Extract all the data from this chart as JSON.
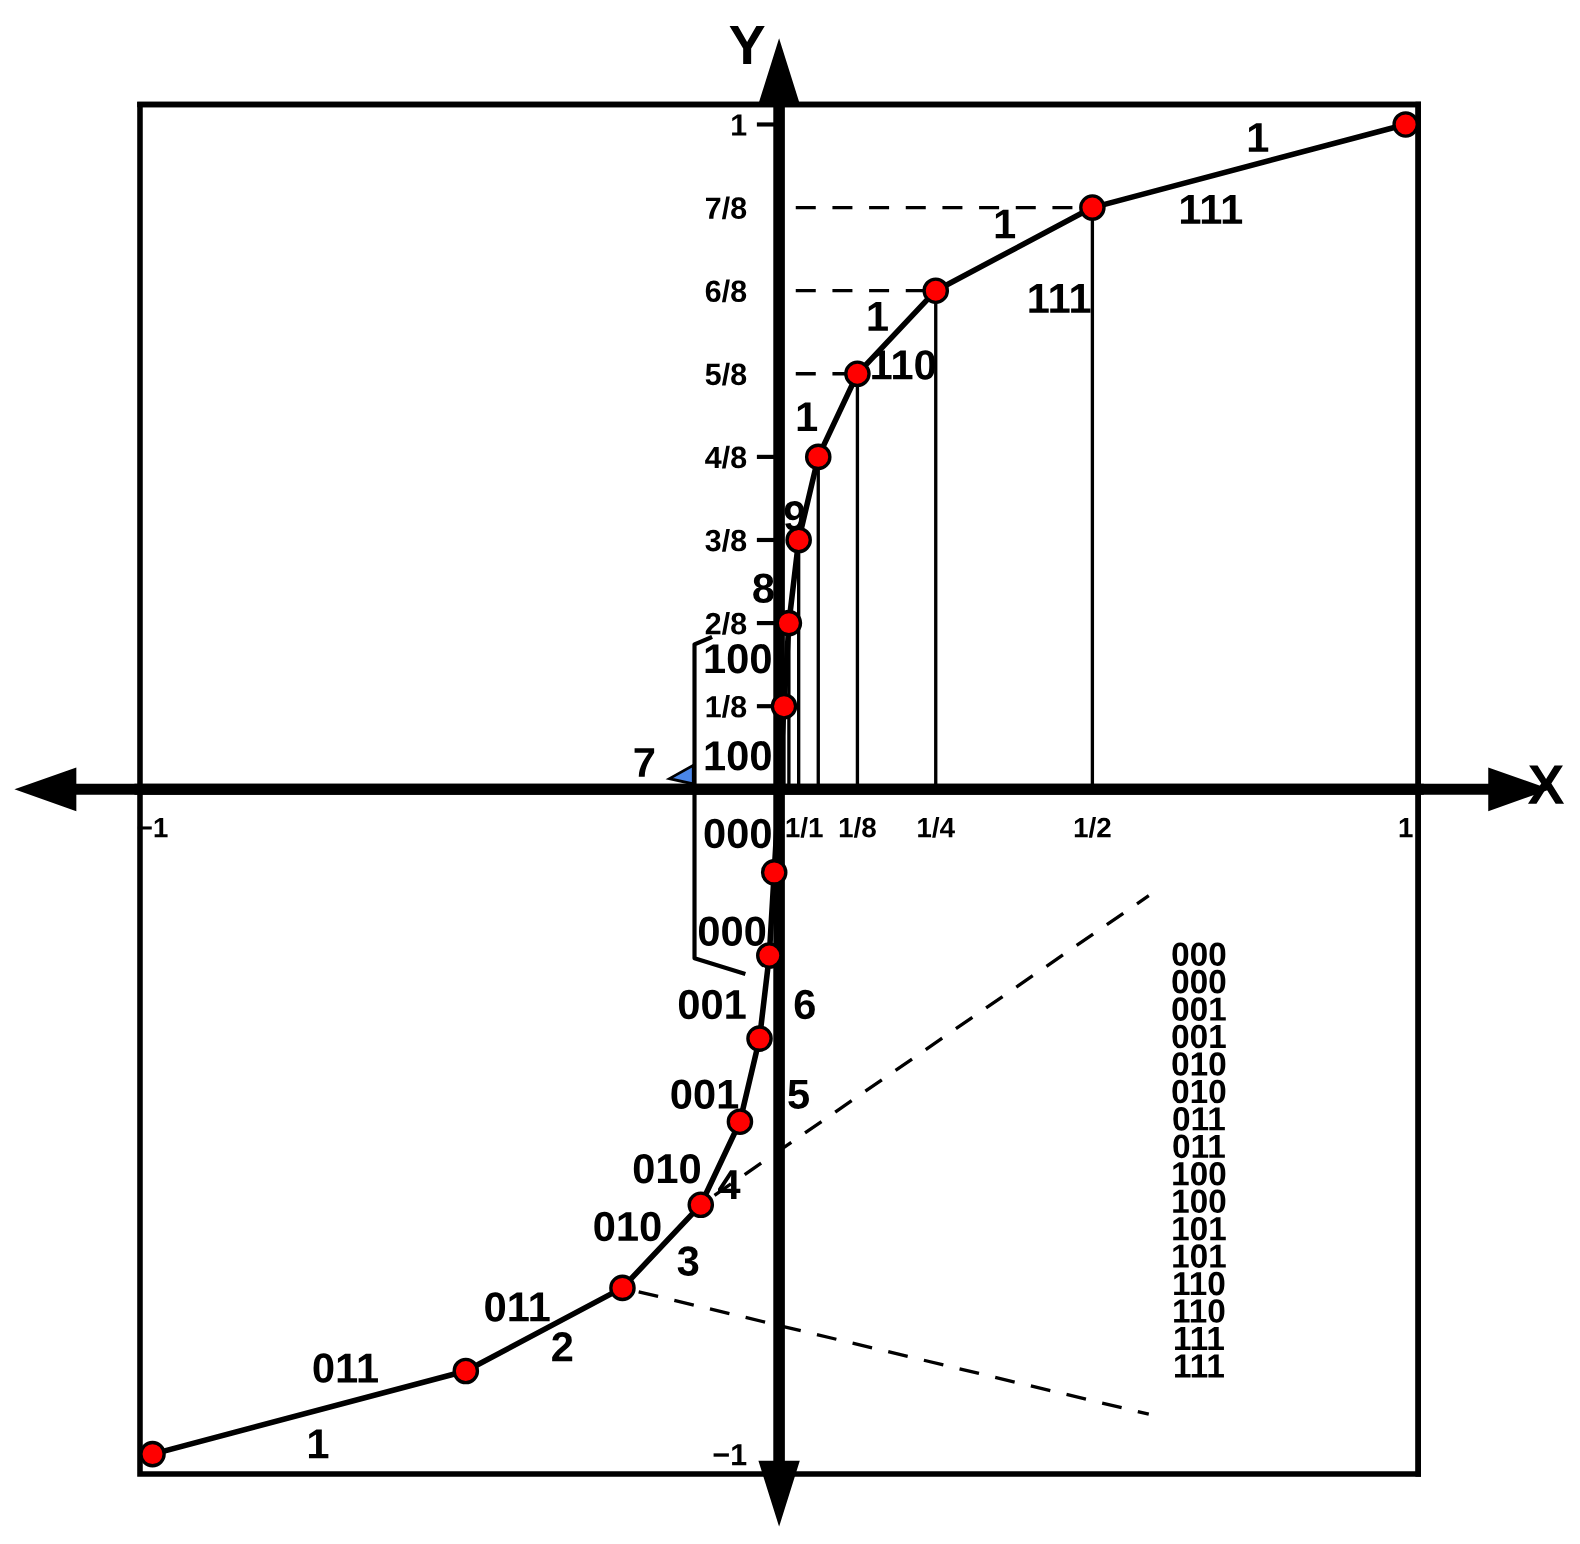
{
  "chart_data": {
    "type": "line",
    "xlabel": "X",
    "ylabel": "Y",
    "xlim": [
      -1.02,
      1.02
    ],
    "ylim": [
      -1.03,
      1.03
    ],
    "xticks": [
      {
        "value": -1,
        "label": "−1"
      },
      {
        "value": 0.04,
        "label": "1/1"
      },
      {
        "value": 0.125,
        "label": "1/8"
      },
      {
        "value": 0.25,
        "label": "1/4"
      },
      {
        "value": 0.5,
        "label": "1/2"
      },
      1
    ],
    "yticks": [
      {
        "value": -1,
        "label": "−1"
      },
      {
        "value": 0.125,
        "label": "1/8"
      },
      {
        "value": 0.25,
        "label": "2/8"
      },
      {
        "value": 0.375,
        "label": "3/8"
      },
      {
        "value": 0.5,
        "label": "4/8"
      },
      {
        "value": 0.625,
        "label": "5/8"
      },
      {
        "value": 0.75,
        "label": "6/8"
      },
      {
        "value": 0.875,
        "label": "7/8"
      },
      1
    ],
    "grid": false,
    "marker": "circle",
    "line_style": "solid",
    "series": [
      {
        "color": "#000000",
        "marker": "none",
        "x": [
          -1,
          -0.5,
          -0.25,
          -0.125,
          -0.0625,
          -0.03125,
          -0.015625,
          -0.0078125,
          0.0078125,
          0.015625,
          0.03125,
          0.0625,
          0.125,
          0.25,
          0.5,
          1
        ],
        "values": [
          -1,
          -0.875,
          -0.75,
          -0.625,
          -0.5,
          -0.375,
          -0.25,
          -0.125,
          0.125,
          0.25,
          0.375,
          0.5,
          0.625,
          0.75,
          0.875,
          1
        ]
      },
      {
        "color": "#000000",
        "marker": "none",
        "x": [
          0.0078125,
          0.0078125
        ],
        "values": [
          0,
          0.125
        ]
      },
      {
        "color": "#000000",
        "marker": "none",
        "x": [
          0.015625,
          0.015625
        ],
        "values": [
          0,
          0.25
        ]
      },
      {
        "color": "#000000",
        "marker": "none",
        "x": [
          0.03125,
          0.03125
        ],
        "values": [
          0,
          0.375
        ]
      },
      {
        "color": "#000000",
        "marker": "none",
        "x": [
          0.0625,
          0.0625
        ],
        "values": [
          0,
          0.5
        ]
      },
      {
        "color": "#000000",
        "marker": "none",
        "x": [
          0.125,
          0.125
        ],
        "values": [
          0,
          0.625
        ]
      },
      {
        "color": "#000000",
        "marker": "none",
        "x": [
          0.25,
          0.25
        ],
        "values": [
          0,
          0.75
        ]
      },
      {
        "color": "#000000",
        "marker": "none",
        "x": [
          0.5,
          0.5
        ],
        "values": [
          0,
          0.875
        ]
      },
      {
        "color": "#000000",
        "marker": "none",
        "line_style": "dashed",
        "x": [
          0,
          0.5
        ],
        "values": [
          0.875,
          0.875
        ]
      },
      {
        "color": "#000000",
        "marker": "none",
        "line_style": "dashed",
        "x": [
          0,
          0.25
        ],
        "values": [
          0.75,
          0.75
        ]
      },
      {
        "color": "#000000",
        "marker": "none",
        "line_style": "dashed",
        "x": [
          0,
          0.125
        ],
        "values": [
          0.625,
          0.625
        ]
      },
      {
        "color": "#000000",
        "marker": "none",
        "line_style": "dashed",
        "x": [
          -0.125,
          0.59
        ],
        "values": [
          -0.625,
          -0.16
        ]
      },
      {
        "color": "#000000",
        "marker": "none",
        "line_style": "dashed",
        "x": [
          -0.25,
          0.59
        ],
        "values": [
          -0.75,
          -0.94
        ]
      },
      {
        "type": "scatter",
        "color": "#ff0000",
        "x": [
          -1,
          -0.5,
          -0.25,
          -0.125,
          -0.0625,
          -0.03125,
          -0.015625,
          -0.0078125,
          0.0078125,
          0.015625,
          0.03125,
          0.0625,
          0.125,
          0.25,
          0.5,
          1
        ],
        "values": [
          -1,
          -0.875,
          -0.75,
          -0.625,
          -0.5,
          -0.375,
          -0.25,
          -0.125,
          0.125,
          0.25,
          0.375,
          0.5,
          0.625,
          0.75,
          0.875,
          1
        ]
      }
    ],
    "annotations": [
      "1",
      "111",
      "1",
      "111",
      "1",
      "110",
      "1",
      "9",
      "8",
      "100",
      "100",
      "7",
      "000",
      "000",
      "001",
      "6",
      "001",
      "5",
      "010",
      "4",
      "010",
      "3",
      "011",
      "2",
      "011",
      "1",
      "000\n000\n001\n001\n010\n010\n011\n011\n100\n100\n101\n101\n110\n110\n111\n111"
    ]
  }
}
